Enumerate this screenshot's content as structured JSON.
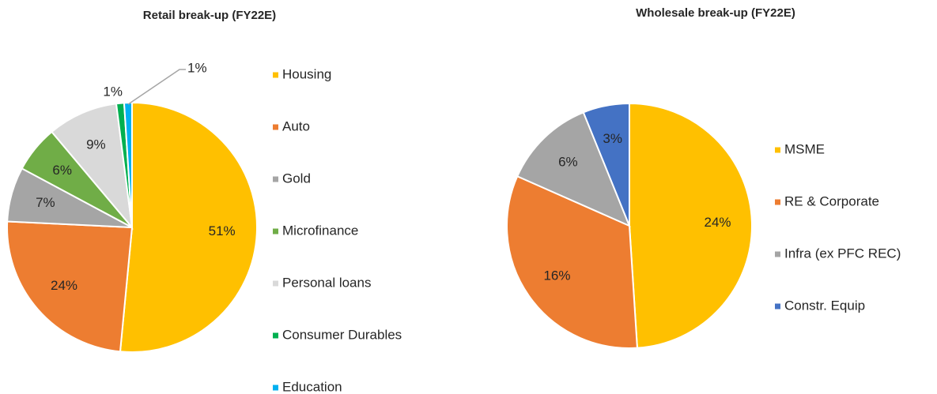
{
  "chart_data": [
    {
      "type": "pie",
      "title": "Retail break-up (FY22E)",
      "categories": [
        "Housing",
        "Auto",
        "Gold",
        "Microfinance",
        "Personal loans",
        "Consumer Durables",
        "Education"
      ],
      "values": [
        51,
        24,
        7,
        6,
        9,
        1,
        1
      ],
      "value_labels": [
        "51%",
        "24%",
        "7%",
        "6%",
        "9%",
        "1%",
        "1%"
      ],
      "colors": [
        "#FFC000",
        "#ED7D31",
        "#A5A5A5",
        "#70AD47",
        "#D9D9D9",
        "#00B050",
        "#00B0F0"
      ],
      "legend": "right"
    },
    {
      "type": "pie",
      "title": "Wholesale break-up (FY22E)",
      "categories": [
        "MSME",
        "RE & Corporate",
        "Infra (ex PFC REC)",
        "Constr. Equip"
      ],
      "values": [
        24,
        16,
        6,
        3
      ],
      "value_labels": [
        "24%",
        "16%",
        "6%",
        "3%"
      ],
      "colors": [
        "#FFC000",
        "#ED7D31",
        "#A5A5A5",
        "#4472C4"
      ],
      "legend": "right"
    }
  ]
}
